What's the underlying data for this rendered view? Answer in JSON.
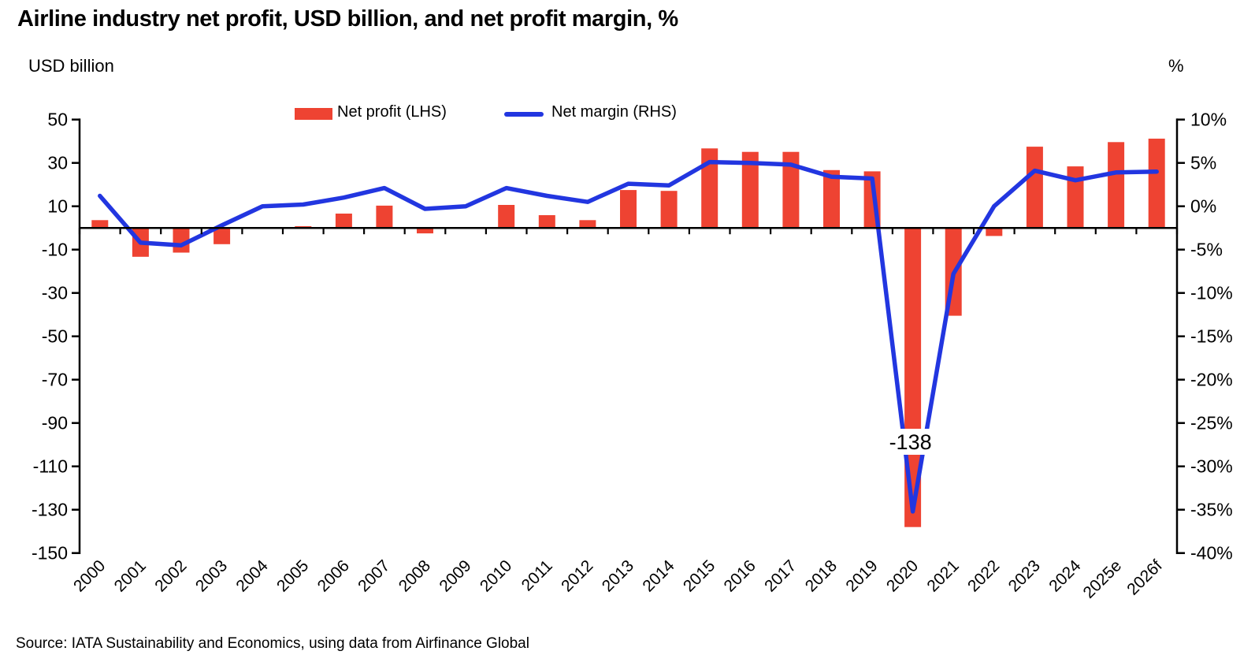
{
  "header": {
    "title": "Airline industry net profit, USD billion, and net profit margin, %"
  },
  "axes": {
    "left_unit_label": "USD billion",
    "right_unit_label": "%",
    "left_tick_labels": [
      "50",
      "30",
      "10",
      "-10",
      "-30",
      "-50",
      "-70",
      "-90",
      "-110",
      "-130",
      "-150"
    ],
    "right_tick_labels": [
      "10%",
      "5%",
      "0%",
      "-5%",
      "-10%",
      "-15%",
      "-20%",
      "-25%",
      "-30%",
      "-35%",
      "-40%"
    ]
  },
  "legend": {
    "net_profit_label": "Net profit (LHS)",
    "net_margin_label": "Net margin (RHS)"
  },
  "footer": {
    "source": "Source: IATA Sustainability and Economics, using data from Airfinance Global"
  },
  "colors": {
    "bar": "#EE4332",
    "line": "#2236E0",
    "axis": "#000000",
    "background": "#FFFFFF"
  },
  "chart_data": {
    "type": "bar",
    "title": "Airline industry net profit, USD billion, and net profit margin, %",
    "categories": [
      "2000",
      "2001",
      "2002",
      "2003",
      "2004",
      "2005",
      "2006",
      "2007",
      "2008",
      "2009",
      "2010",
      "2011",
      "2012",
      "2013",
      "2014",
      "2015",
      "2016",
      "2017",
      "2018",
      "2019",
      "2020",
      "2021",
      "2022",
      "2023",
      "2024",
      "2025e",
      "2026f"
    ],
    "series": [
      {
        "name": "Net profit (LHS)",
        "type": "bar",
        "axis": "left",
        "unit": "USD billion",
        "values": [
          3.6,
          -13.3,
          -11.4,
          -7.5,
          0,
          0.8,
          6.6,
          10.3,
          -2.5,
          0,
          10.6,
          5.9,
          3.6,
          17.5,
          17.1,
          36.7,
          35.1,
          35.1,
          26.7,
          26.1,
          -138,
          -40.5,
          -3.7,
          37.5,
          28.4,
          39.6,
          41.2
        ]
      },
      {
        "name": "Net margin (RHS)",
        "type": "line",
        "axis": "right",
        "unit": "%",
        "values": [
          1.2,
          -4.2,
          -4.5,
          -2.2,
          0,
          0.2,
          1.0,
          2.1,
          -0.3,
          0,
          2.1,
          1.2,
          0.5,
          2.6,
          2.4,
          5.1,
          5.0,
          4.8,
          3.4,
          3.2,
          -35.2,
          -7.8,
          0,
          4.1,
          3.0,
          3.9,
          4.0
        ]
      }
    ],
    "left_axis": {
      "label": "USD billion",
      "min": -150,
      "max": 50,
      "ticks": [
        50,
        30,
        10,
        -10,
        -30,
        -50,
        -70,
        -90,
        -110,
        -130,
        -150
      ]
    },
    "right_axis": {
      "label": "%",
      "min": -40,
      "max": 10,
      "ticks": [
        10,
        5,
        0,
        -5,
        -10,
        -15,
        -20,
        -25,
        -30,
        -35,
        -40
      ]
    },
    "annotations": [
      {
        "category": "2020",
        "series": "Net profit (LHS)",
        "text": "-138"
      }
    ],
    "legend_position": "top",
    "grid": false
  }
}
